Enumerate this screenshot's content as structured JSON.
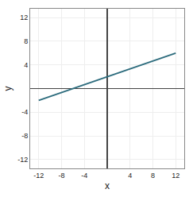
{
  "chart_data": {
    "type": "line",
    "x": [
      -12,
      12
    ],
    "values": [
      -2,
      6
    ],
    "xlabel": "x",
    "ylabel": "y",
    "xlim": [
      -13.5,
      13.5
    ],
    "ylim": [
      -13.5,
      13.5
    ],
    "xticks": [
      -12,
      -8,
      -4,
      4,
      8,
      12
    ],
    "yticks": [
      -12,
      -8,
      -4,
      4,
      8,
      12
    ],
    "grid": true,
    "color": "#2e6d7e"
  }
}
